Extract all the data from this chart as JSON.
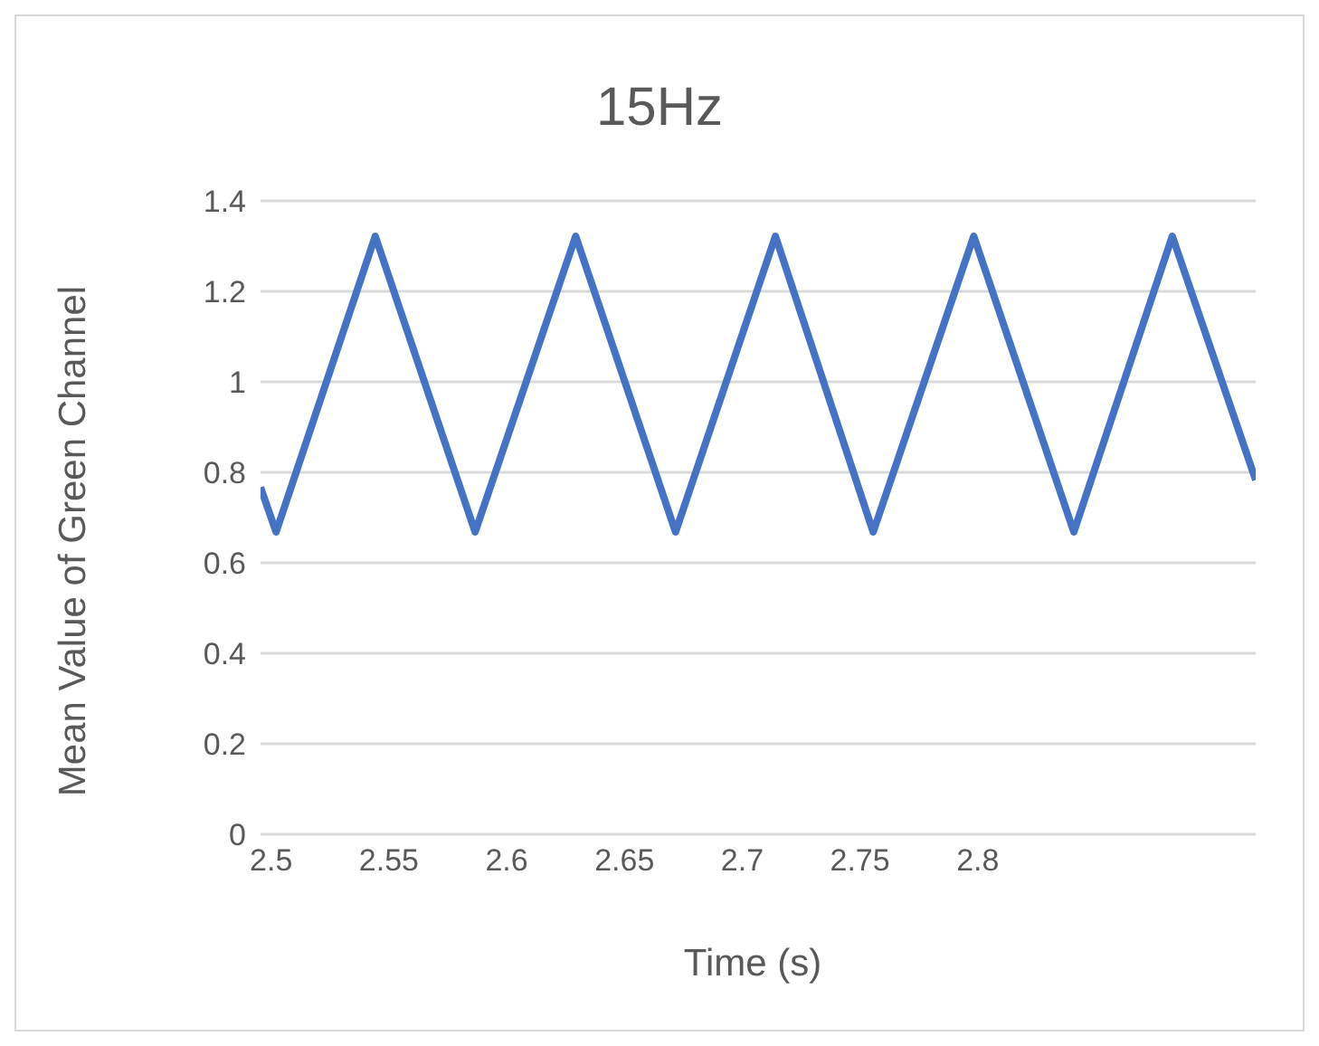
{
  "chart_data": {
    "type": "line",
    "title": "15Hz",
    "xlabel": "Time (s)",
    "ylabel": "Mean Value of Green Channel",
    "x": [
      2.4955,
      2.5021,
      2.5442,
      2.5866,
      2.6293,
      2.6717,
      2.7141,
      2.7556,
      2.7983,
      2.8408,
      2.8826,
      2.918
    ],
    "series": [
      {
        "color": "#4472c4",
        "values": [
          0.767,
          0.668,
          1.322,
          0.668,
          1.322,
          0.668,
          1.322,
          0.668,
          1.322,
          0.668,
          1.322,
          0.783
        ]
      }
    ],
    "xlim": [
      2.4955,
      2.918
    ],
    "xticks": [
      2.5,
      2.55,
      2.6,
      2.65,
      2.7,
      2.75,
      2.8
    ],
    "ylim": [
      0,
      1.4
    ],
    "yticks": [
      0,
      0.2,
      0.4,
      0.6,
      0.8,
      1,
      1.2,
      1.4
    ],
    "grid": "y",
    "legend": false,
    "marker": "none",
    "line_style": "solid"
  }
}
